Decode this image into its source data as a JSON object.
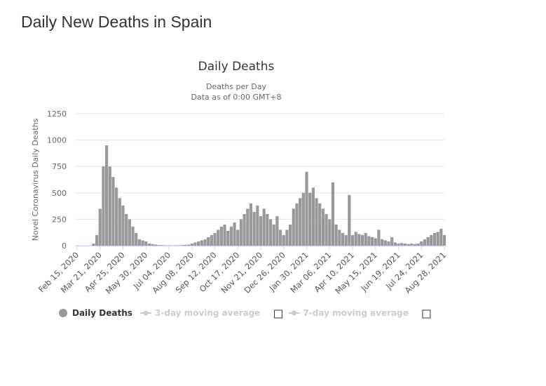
{
  "page_title": "Daily New Deaths in Spain",
  "chart_data": {
    "type": "bar",
    "title": "Daily Deaths",
    "subtitle": [
      "Deaths per Day",
      "Data as of 0:00 GMT+8"
    ],
    "y_label": "Novel Coronavirus Daily Deaths",
    "categories": [
      "Feb 15, 2020",
      null,
      null,
      null,
      null,
      null,
      null,
      "Mar 21, 2020",
      null,
      null,
      null,
      null,
      null,
      null,
      "Apr 25, 2020",
      null,
      null,
      null,
      null,
      null,
      null,
      "May 30, 2020",
      null,
      null,
      null,
      null,
      null,
      null,
      "Jul 04, 2020",
      null,
      null,
      null,
      null,
      null,
      null,
      "Aug 08, 2020",
      null,
      null,
      null,
      null,
      null,
      null,
      "Sep 12, 2020",
      null,
      null,
      null,
      null,
      null,
      null,
      "Oct 17, 2020",
      null,
      null,
      null,
      null,
      null,
      null,
      "Nov 21, 2020",
      null,
      null,
      null,
      null,
      null,
      null,
      "Dec 26, 2020",
      null,
      null,
      null,
      null,
      null,
      null,
      "Jan 30, 2021",
      null,
      null,
      null,
      null,
      null,
      null,
      "Mar 06, 2021",
      null,
      null,
      null,
      null,
      null,
      null,
      "Apr 10, 2021",
      null,
      null,
      null,
      null,
      null,
      null,
      "May 15, 2021",
      null,
      null,
      null,
      null,
      null,
      null,
      "Jun 19, 2021",
      null,
      null,
      null,
      null,
      null,
      null,
      "Jul 24, 2021",
      null,
      null,
      null,
      null,
      null,
      null,
      "Aug 28, 2021"
    ],
    "series": [
      {
        "name": "Daily Deaths",
        "color": "#999999",
        "values": [
          0,
          0,
          0,
          0,
          2,
          20,
          100,
          350,
          750,
          950,
          750,
          650,
          550,
          450,
          380,
          300,
          250,
          180,
          120,
          60,
          50,
          40,
          20,
          15,
          10,
          5,
          5,
          3,
          2,
          2,
          3,
          3,
          5,
          8,
          10,
          20,
          30,
          40,
          50,
          60,
          80,
          100,
          120,
          150,
          180,
          200,
          140,
          180,
          220,
          150,
          250,
          300,
          350,
          400,
          320,
          380,
          280,
          350,
          300,
          250,
          200,
          280,
          150,
          100,
          150,
          200,
          350,
          400,
          450,
          500,
          700,
          500,
          550,
          450,
          400,
          350,
          300,
          250,
          600,
          200,
          150,
          120,
          100,
          480,
          100,
          130,
          110,
          100,
          120,
          90,
          80,
          70,
          150,
          60,
          50,
          40,
          80,
          30,
          20,
          25,
          20,
          15,
          20,
          15,
          20,
          40,
          60,
          80,
          100,
          120,
          130,
          160,
          100
        ]
      }
    ],
    "legend_items": [
      {
        "name": "3-day moving average",
        "color": "#cccccc"
      },
      {
        "name": "7-day moving average",
        "color": "#cccccc"
      }
    ],
    "ylim": [
      0,
      1250
    ],
    "yticks": [
      0,
      250,
      500,
      750,
      1000,
      1250
    ],
    "grid": true
  }
}
